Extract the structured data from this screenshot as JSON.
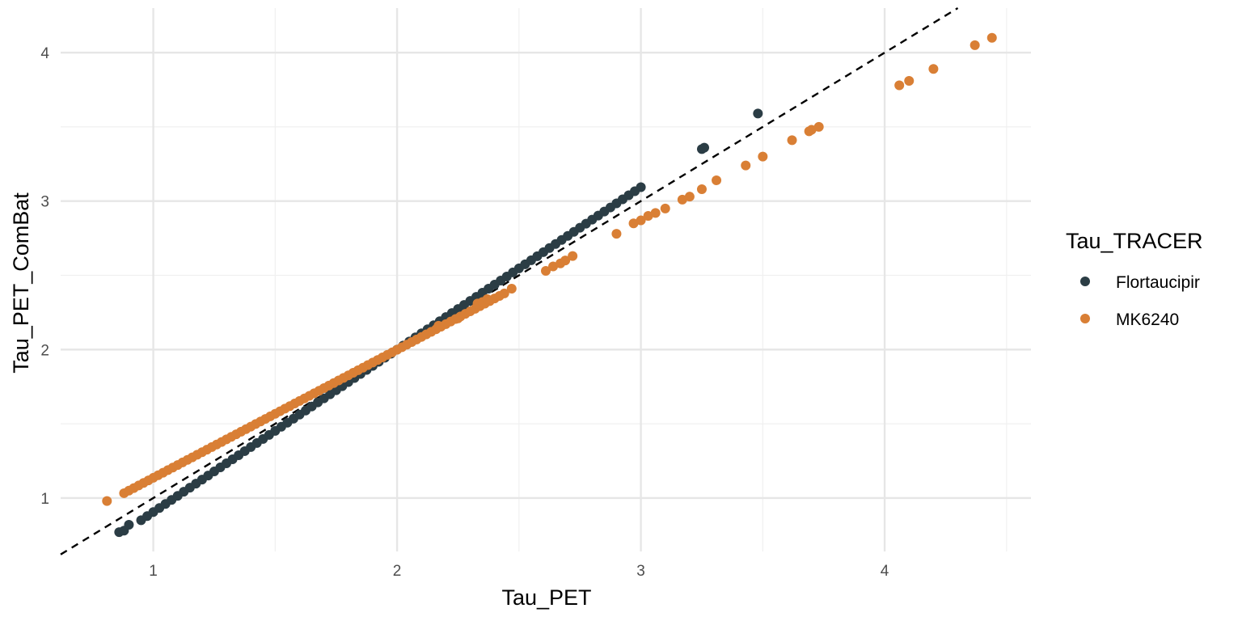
{
  "chart_data": {
    "type": "scatter",
    "xlabel": "Tau_PET",
    "ylabel": "Tau_PET_ComBat",
    "xlim": [
      0.62,
      4.6
    ],
    "ylim": [
      0.64,
      4.3
    ],
    "x_ticks": [
      "1",
      "2",
      "3",
      "4"
    ],
    "y_ticks": [
      "1",
      "2",
      "3",
      "4"
    ],
    "grid": true,
    "reference_line": {
      "style": "dashed",
      "slope": 1,
      "intercept": 0,
      "color": "#000000"
    },
    "legend": {
      "title": "Tau_TRACER",
      "position": "right"
    },
    "series": [
      {
        "name": "Flortaucipir",
        "color": "#2b3d45",
        "trend": {
          "slope": 1.0943,
          "intercept": -0.189,
          "x_from": 0.95,
          "x_to": 3.0,
          "step": 0.025
        },
        "points": [
          [
            0.86,
            0.77
          ],
          [
            0.88,
            0.78
          ],
          [
            0.9,
            0.82
          ],
          [
            3.25,
            3.35
          ],
          [
            3.26,
            3.36
          ],
          [
            3.48,
            3.59
          ]
        ]
      },
      {
        "name": "MK6240",
        "color": "#d97f35",
        "trend": {
          "slope": 0.8627,
          "intercept": 0.2733,
          "x_from": 0.88,
          "x_to": 2.45,
          "step": 0.02
        },
        "points": [
          [
            0.81,
            0.98
          ],
          [
            2.17,
            2.16
          ],
          [
            2.25,
            2.21
          ],
          [
            2.33,
            2.31
          ],
          [
            2.35,
            2.32
          ],
          [
            2.37,
            2.34
          ],
          [
            2.47,
            2.41
          ],
          [
            2.61,
            2.53
          ],
          [
            2.64,
            2.56
          ],
          [
            2.67,
            2.58
          ],
          [
            2.69,
            2.6
          ],
          [
            2.72,
            2.63
          ],
          [
            2.9,
            2.78
          ],
          [
            2.97,
            2.85
          ],
          [
            3.0,
            2.87
          ],
          [
            3.03,
            2.9
          ],
          [
            3.06,
            2.92
          ],
          [
            3.1,
            2.95
          ],
          [
            3.17,
            3.01
          ],
          [
            3.2,
            3.03
          ],
          [
            3.25,
            3.08
          ],
          [
            3.31,
            3.14
          ],
          [
            3.43,
            3.24
          ],
          [
            3.5,
            3.3
          ],
          [
            3.62,
            3.41
          ],
          [
            3.69,
            3.47
          ],
          [
            3.7,
            3.48
          ],
          [
            3.73,
            3.5
          ],
          [
            4.06,
            3.78
          ],
          [
            4.1,
            3.81
          ],
          [
            4.2,
            3.89
          ],
          [
            4.37,
            4.05
          ],
          [
            4.44,
            4.1
          ]
        ]
      }
    ]
  }
}
